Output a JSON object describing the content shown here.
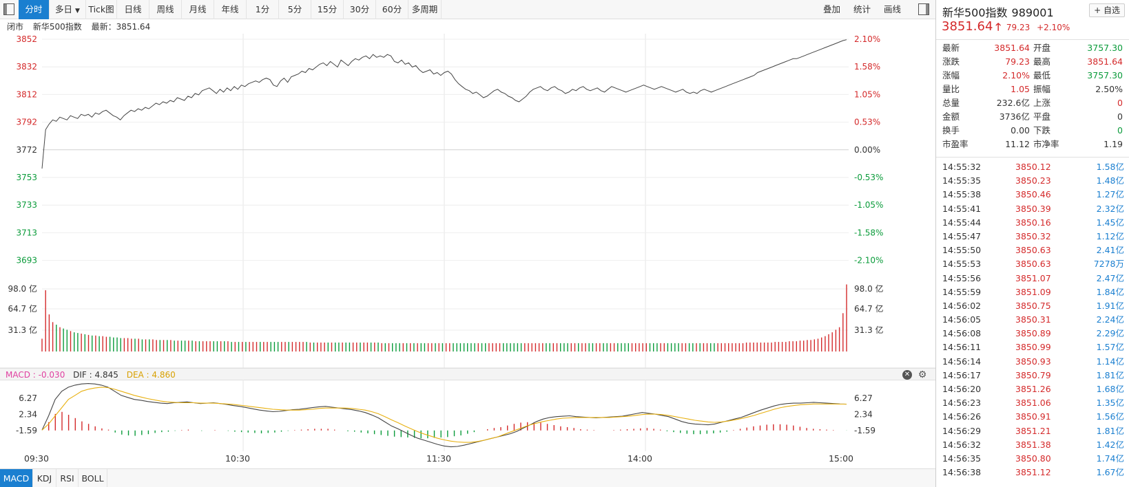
{
  "toolbar": {
    "tabs": [
      "分时",
      "多日",
      "Tick图",
      "日线",
      "周线",
      "月线",
      "年线",
      "1分",
      "5分",
      "15分",
      "30分",
      "60分",
      "多周期"
    ],
    "right_actions": [
      "叠加",
      "统计",
      "画线"
    ]
  },
  "info_bar": {
    "status": "闭市",
    "index_name": "新华500指数",
    "latest_label": "最新：3851.64"
  },
  "chart": {
    "price_ticks_left": [
      "3852",
      "3832",
      "3812",
      "3792",
      "3772",
      "3753",
      "3733",
      "3713",
      "3693"
    ],
    "pct_ticks_right": [
      "2.10%",
      "1.58%",
      "1.05%",
      "0.53%",
      "0.00%",
      "-0.53%",
      "-1.05%",
      "-1.58%",
      "-2.10%"
    ],
    "volume_ticks": [
      "98.0 亿",
      "64.7 亿",
      "31.3 亿"
    ],
    "time_ticks": [
      "09:30",
      "10:30",
      "11:30",
      "14:00",
      "15:00"
    ],
    "prev_close": 3772.41,
    "price_series": [
      3759,
      3787,
      3791,
      3794,
      3793,
      3796,
      3795,
      3794,
      3797,
      3796,
      3795,
      3798,
      3797,
      3798,
      3796,
      3799,
      3798,
      3800,
      3801,
      3799,
      3797,
      3796,
      3794,
      3797,
      3799,
      3801,
      3800,
      3802,
      3801,
      3803,
      3802,
      3804,
      3806,
      3805,
      3807,
      3806,
      3808,
      3807,
      3810,
      3809,
      3808,
      3811,
      3810,
      3813,
      3812,
      3815,
      3816,
      3817,
      3815,
      3813,
      3816,
      3814,
      3817,
      3815,
      3818,
      3816,
      3819,
      3818,
      3820,
      3821,
      3822,
      3821,
      3823,
      3824,
      3823,
      3819,
      3818,
      3822,
      3824,
      3821,
      3825,
      3826,
      3827,
      3829,
      3828,
      3831,
      3830,
      3832,
      3834,
      3835,
      3833,
      3836,
      3834,
      3832,
      3837,
      3835,
      3833,
      3836,
      3838,
      3837,
      3839,
      3840,
      3838,
      3841,
      3839,
      3840,
      3839,
      3841,
      3840,
      3836,
      3835,
      3837,
      3834,
      3835,
      3832,
      3833,
      3830,
      3828,
      3829,
      3830,
      3827,
      3828,
      3826,
      3828,
      3829,
      3827,
      3823,
      3820,
      3818,
      3816,
      3815,
      3813,
      3814,
      3812,
      3810,
      3811,
      3813,
      3815,
      3816,
      3814,
      3813,
      3811,
      3810,
      3808,
      3807,
      3809,
      3811,
      3814,
      3816,
      3817,
      3818,
      3816,
      3815,
      3817,
      3818,
      3816,
      3815,
      3813,
      3814,
      3816,
      3815,
      3817,
      3818,
      3816,
      3815,
      3816,
      3817,
      3815,
      3814,
      3816,
      3818,
      3817,
      3816,
      3815,
      3814,
      3815,
      3816,
      3817,
      3818,
      3819,
      3818,
      3817,
      3816,
      3817,
      3818,
      3817,
      3816,
      3815,
      3814,
      3815,
      3816,
      3814,
      3813,
      3814,
      3813,
      3815,
      3816,
      3815,
      3814,
      3815,
      3816,
      3817,
      3818,
      3819,
      3820,
      3821,
      3822,
      3823,
      3824,
      3825,
      3826,
      3828,
      3829,
      3830,
      3831,
      3832,
      3833,
      3834,
      3835,
      3836,
      3837,
      3838,
      3838,
      3839,
      3840,
      3841,
      3842,
      3843,
      3844,
      3845,
      3846,
      3847,
      3848,
      3849,
      3850,
      3851,
      3851.64
    ],
    "volume_series": [
      20,
      96,
      58,
      46,
      42,
      38,
      36,
      34,
      32,
      30,
      29,
      28,
      27,
      26,
      25,
      25,
      24,
      24,
      23,
      23,
      22,
      22,
      21,
      21,
      21,
      20,
      20,
      20,
      19,
      19,
      19,
      19,
      18,
      18,
      18,
      18,
      18,
      17,
      17,
      17,
      17,
      17,
      17,
      16,
      16,
      16,
      16,
      16,
      16,
      16,
      16,
      16,
      16,
      15,
      15,
      15,
      15,
      15,
      15,
      15,
      15,
      15,
      15,
      15,
      15,
      15,
      15,
      15,
      15,
      15,
      15,
      15,
      15,
      15,
      15,
      14,
      14,
      14,
      14,
      14,
      14,
      14,
      14,
      14,
      14,
      14,
      14,
      14,
      14,
      14,
      14,
      14,
      14,
      14,
      14,
      13,
      13,
      13,
      13,
      13,
      13,
      13,
      13,
      13,
      13,
      13,
      13,
      13,
      13,
      13,
      13,
      13,
      13,
      13,
      13,
      13,
      13,
      13,
      13,
      13,
      13,
      13,
      13,
      13,
      13,
      13,
      13,
      13,
      13,
      13,
      13,
      13,
      13,
      13,
      13,
      13,
      13,
      13,
      13,
      13,
      13,
      13,
      13,
      13,
      13,
      13,
      13,
      13,
      13,
      13,
      13,
      13,
      13,
      13,
      13,
      13,
      13,
      13,
      13,
      13,
      13,
      13,
      13,
      13,
      13,
      13,
      13,
      13,
      13,
      13,
      13,
      13,
      13,
      13,
      13,
      13,
      13,
      13,
      13,
      13,
      13,
      13,
      13,
      13,
      13,
      13,
      13,
      13,
      13,
      13,
      13,
      13,
      13,
      13,
      13,
      13,
      13,
      14,
      14,
      14,
      14,
      14,
      14,
      14,
      14,
      15,
      15,
      15,
      15,
      16,
      16,
      16,
      17,
      17,
      18,
      18,
      19,
      20,
      22,
      24,
      27,
      30,
      34,
      38,
      60,
      105
    ]
  },
  "macd": {
    "header_macd": "MACD : -0.030",
    "header_dif": "DIF : 4.845",
    "header_dea": "DEA : 4.860",
    "ticks": [
      "6.27",
      "2.34",
      "-1.59"
    ],
    "dif": [
      -1.5,
      2,
      6,
      8,
      9,
      9.5,
      9.8,
      9.9,
      9.8,
      9.5,
      9,
      8,
      7,
      6.5,
      6,
      5.8,
      5.5,
      5.3,
      5.1,
      5,
      5.2,
      5.3,
      5.4,
      5.2,
      5,
      5.1,
      5.2,
      5,
      4.8,
      4.5,
      4.3,
      4,
      3.7,
      3.4,
      3.2,
      3,
      3.1,
      3.3,
      3.5,
      3.6,
      3.8,
      4,
      4.2,
      4.3,
      4.1,
      3.9,
      3.7,
      3.5,
      3.2,
      2.8,
      2.2,
      1.5,
      0.5,
      -0.5,
      -1.2,
      -2,
      -2.8,
      -3.5,
      -4,
      -4.5,
      -5,
      -5.4,
      -5.6,
      -5.5,
      -5.2,
      -4.8,
      -4.4,
      -4,
      -3.6,
      -3.2,
      -2.8,
      -2.4,
      -1.8,
      -1,
      -0.2,
      0.6,
      1.2,
      1.6,
      1.8,
      1.9,
      2,
      1.8,
      1.7,
      1.6,
      1.5,
      1.6,
      1.7,
      1.8,
      1.9,
      2.2,
      2.5,
      2.8,
      2.6,
      2.4,
      2.1,
      1.8,
      1.2,
      0.6,
      0.2,
      0,
      -0.1,
      -0.2,
      0,
      0.4,
      0.8,
      1.2,
      1.6,
      2.2,
      2.8,
      3.4,
      3.9,
      4.4,
      4.8,
      5,
      5.1,
      5.1,
      5.2,
      5.3,
      5.2,
      5.1,
      5,
      4.9,
      4.85
    ],
    "dea": [
      -1.5,
      0,
      2,
      4,
      6,
      7,
      8,
      8.5,
      8.8,
      9,
      8.9,
      8.5,
      8,
      7.5,
      7,
      6.6,
      6.2,
      5.9,
      5.6,
      5.4,
      5.3,
      5.2,
      5.2,
      5.2,
      5.1,
      5.1,
      5.1,
      5,
      4.9,
      4.8,
      4.6,
      4.4,
      4.2,
      4,
      3.8,
      3.6,
      3.5,
      3.4,
      3.4,
      3.4,
      3.5,
      3.6,
      3.8,
      3.9,
      3.9,
      3.9,
      3.9,
      3.8,
      3.6,
      3.4,
      3,
      2.5,
      1.8,
      1,
      0.3,
      -0.5,
      -1.2,
      -1.9,
      -2.5,
      -3,
      -3.5,
      -3.9,
      -4.2,
      -4.4,
      -4.5,
      -4.5,
      -4.3,
      -4,
      -3.6,
      -3.2,
      -2.6,
      -2,
      -1.4,
      -0.8,
      -0.2,
      0.2,
      0.6,
      0.9,
      1.2,
      1.4,
      1.5,
      1.6,
      1.6,
      1.6,
      1.6,
      1.6,
      1.6,
      1.7,
      1.8,
      1.9,
      2.1,
      2.3,
      2.4,
      2.4,
      2.3,
      2.1,
      1.8,
      1.5,
      1.2,
      0.9,
      0.7,
      0.5,
      0.4,
      0.5,
      0.7,
      1,
      1.3,
      1.7,
      2.1,
      2.6,
      3.1,
      3.6,
      4,
      4.3,
      4.5,
      4.7,
      4.8,
      4.9,
      4.9,
      4.9,
      4.9,
      4.86,
      4.86
    ],
    "histogram": [
      0,
      2,
      4,
      4.5,
      3.8,
      3,
      2.2,
      1.6,
      1,
      0.5,
      0.2,
      -0.5,
      -1,
      -1.2,
      -1.3,
      -1.1,
      -0.9,
      -0.6,
      -0.4,
      -0.3,
      -0.1,
      0.1,
      0.2,
      0,
      -0.1,
      0,
      0.1,
      0,
      -0.1,
      -0.3,
      -0.4,
      -0.5,
      -0.6,
      -0.7,
      -0.6,
      -0.5,
      -0.3,
      -0.1,
      0.1,
      0.2,
      0.3,
      0.4,
      0.4,
      0.4,
      0.2,
      0,
      -0.2,
      -0.3,
      -0.5,
      -0.7,
      -0.9,
      -1.1,
      -1.3,
      -1.5,
      -1.6,
      -1.7,
      -1.8,
      -1.9,
      -1.9,
      -1.8,
      -1.7,
      -1.6,
      -1.4,
      -1.2,
      -0.8,
      -0.4,
      0,
      0.3,
      0.6,
      0.8,
      1.2,
      1.6,
      1.9,
      2,
      2,
      1.9,
      1.6,
      1.3,
      1,
      0.8,
      0.6,
      0.3,
      0.2,
      0.1,
      0,
      0,
      0.1,
      0.2,
      0.3,
      0.4,
      0.5,
      0.6,
      0.4,
      0.2,
      -0.2,
      -0.4,
      -0.6,
      -0.8,
      -0.9,
      -0.9,
      -0.8,
      -0.7,
      -0.5,
      -0.3,
      0.1,
      0.4,
      0.7,
      1,
      1.2,
      1.4,
      1.5,
      1.5,
      1.4,
      1.2,
      0.9,
      0.6,
      0.4,
      0.3,
      0.2,
      0.1,
      0,
      -0.03
    ]
  },
  "bottom_tabs": [
    "MACD",
    "KDJ",
    "RSI",
    "BOLL"
  ],
  "panel": {
    "name": "新华500指数",
    "code": "989001",
    "watch_label": "+ 自选",
    "price": "3851.64",
    "change": "79.23",
    "change_pct": "+2.10%",
    "stats": [
      {
        "l1": "最新",
        "v1": "3851.64",
        "c1": "red",
        "l2": "开盘",
        "v2": "3757.30",
        "c2": "green"
      },
      {
        "l1": "涨跌",
        "v1": "79.23",
        "c1": "red",
        "l2": "最高",
        "v2": "3851.64",
        "c2": "red"
      },
      {
        "l1": "涨幅",
        "v1": "2.10%",
        "c1": "red",
        "l2": "最低",
        "v2": "3757.30",
        "c2": "green"
      },
      {
        "l1": "量比",
        "v1": "1.05",
        "c1": "red",
        "l2": "振幅",
        "v2": "2.50%",
        "c2": "dark"
      },
      {
        "l1": "总量",
        "v1": "232.6亿",
        "c1": "dark",
        "l2": "上涨",
        "v2": "0",
        "c2": "red"
      },
      {
        "l1": "金额",
        "v1": "3736亿",
        "c1": "dark",
        "l2": "平盘",
        "v2": "0",
        "c2": "dark"
      },
      {
        "l1": "换手",
        "v1": "0.00",
        "c1": "dark",
        "l2": "下跌",
        "v2": "0",
        "c2": "green"
      },
      {
        "l1": "市盈率",
        "v1": "11.12",
        "c1": "dark",
        "l2": "市净率",
        "v2": "1.19",
        "c2": "dark"
      }
    ],
    "ticks": [
      {
        "time": "14:55:32",
        "price": "3850.12",
        "amount": "1.58亿"
      },
      {
        "time": "14:55:35",
        "price": "3850.23",
        "amount": "1.48亿"
      },
      {
        "time": "14:55:38",
        "price": "3850.46",
        "amount": "1.27亿"
      },
      {
        "time": "14:55:41",
        "price": "3850.39",
        "amount": "2.32亿"
      },
      {
        "time": "14:55:44",
        "price": "3850.16",
        "amount": "1.45亿"
      },
      {
        "time": "14:55:47",
        "price": "3850.32",
        "amount": "1.12亿"
      },
      {
        "time": "14:55:50",
        "price": "3850.63",
        "amount": "2.41亿"
      },
      {
        "time": "14:55:53",
        "price": "3850.63",
        "amount": "7278万"
      },
      {
        "time": "14:55:56",
        "price": "3851.07",
        "amount": "2.47亿"
      },
      {
        "time": "14:55:59",
        "price": "3851.09",
        "amount": "1.84亿"
      },
      {
        "time": "14:56:02",
        "price": "3850.75",
        "amount": "1.91亿"
      },
      {
        "time": "14:56:05",
        "price": "3850.31",
        "amount": "2.24亿"
      },
      {
        "time": "14:56:08",
        "price": "3850.89",
        "amount": "2.29亿"
      },
      {
        "time": "14:56:11",
        "price": "3850.99",
        "amount": "1.57亿"
      },
      {
        "time": "14:56:14",
        "price": "3850.93",
        "amount": "1.14亿"
      },
      {
        "time": "14:56:17",
        "price": "3850.79",
        "amount": "1.81亿"
      },
      {
        "time": "14:56:20",
        "price": "3851.26",
        "amount": "1.68亿"
      },
      {
        "time": "14:56:23",
        "price": "3851.06",
        "amount": "1.35亿"
      },
      {
        "time": "14:56:26",
        "price": "3850.91",
        "amount": "1.56亿"
      },
      {
        "time": "14:56:29",
        "price": "3851.21",
        "amount": "1.81亿"
      },
      {
        "time": "14:56:32",
        "price": "3851.38",
        "amount": "1.42亿"
      },
      {
        "time": "14:56:35",
        "price": "3850.80",
        "amount": "1.74亿"
      },
      {
        "time": "14:56:38",
        "price": "3851.12",
        "amount": "1.67亿"
      }
    ]
  },
  "colors": {
    "up": "#d4292a",
    "down": "#0a9b3a",
    "accent": "#1a7fd0",
    "dif": "#444444",
    "dea": "#e8b00f",
    "macd_label": "#e040a0"
  }
}
